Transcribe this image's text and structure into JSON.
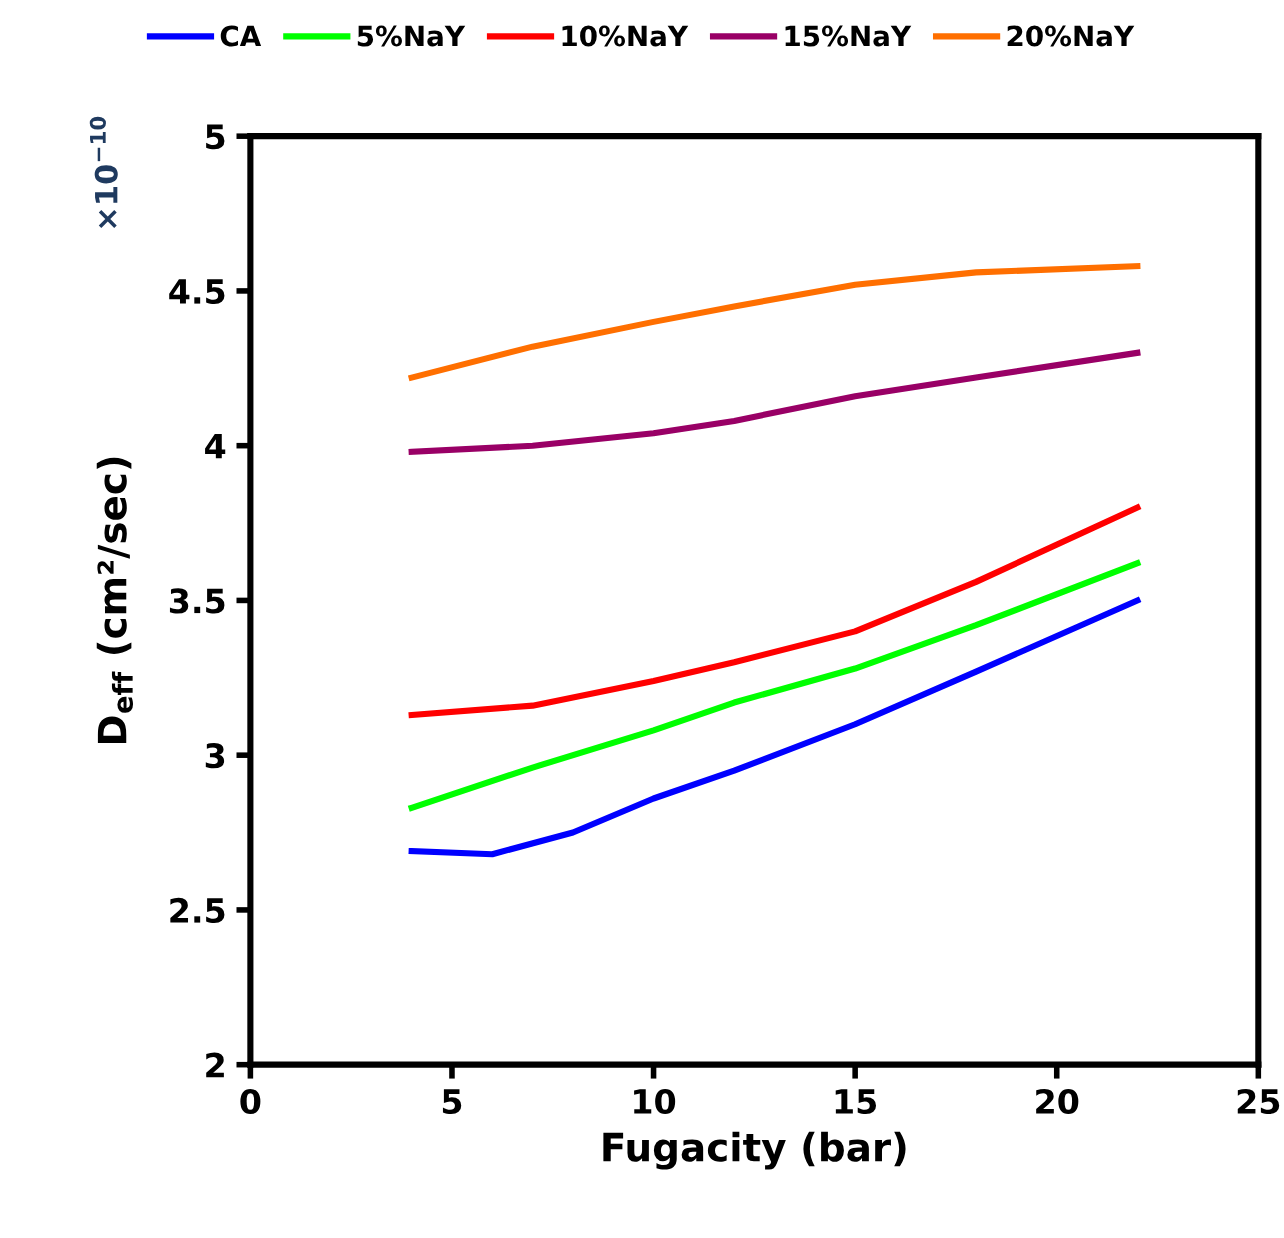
{
  "chart_data": {
    "type": "line",
    "xlabel": "Fugacity (bar)",
    "ylabel": "D$_{eff}$ (cm²/sec)",
    "annotations": [
      "×10$^{−10}$"
    ],
    "xlim": [
      0,
      25
    ],
    "xticks": [
      0,
      5,
      10,
      15,
      20,
      25
    ],
    "ylim": [
      2,
      5
    ],
    "yticks": [
      2,
      2.5,
      3,
      3.5,
      4,
      4.5,
      5
    ],
    "grid": false,
    "legend": "top",
    "marker": "none",
    "line_style": "solid",
    "series": [
      {
        "name": "CA",
        "color": "#0000ff",
        "x": [
          4,
          6,
          8,
          10,
          12,
          15,
          18,
          22
        ],
        "values": [
          2.69,
          2.68,
          2.75,
          2.86,
          2.95,
          3.1,
          3.27,
          3.5
        ]
      },
      {
        "name": "5%NaY",
        "color": "#00ff00",
        "x": [
          4,
          7,
          10,
          12,
          15,
          18,
          22
        ],
        "values": [
          2.83,
          2.96,
          3.08,
          3.17,
          3.28,
          3.42,
          3.62
        ]
      },
      {
        "name": "10%NaY",
        "color": "#ff0000",
        "x": [
          4,
          7,
          10,
          12,
          15,
          18,
          22
        ],
        "values": [
          3.13,
          3.16,
          3.24,
          3.3,
          3.4,
          3.56,
          3.8
        ]
      },
      {
        "name": "15%NaY",
        "color": "#990066",
        "x": [
          4,
          7,
          10,
          12,
          15,
          18,
          22
        ],
        "values": [
          3.98,
          4.0,
          4.04,
          4.08,
          4.16,
          4.22,
          4.3
        ]
      },
      {
        "name": "20%NaY",
        "color": "#ff6f00",
        "x": [
          4,
          7,
          10,
          12,
          15,
          18,
          22
        ],
        "values": [
          4.22,
          4.32,
          4.4,
          4.45,
          4.52,
          4.56,
          4.58
        ]
      }
    ]
  }
}
